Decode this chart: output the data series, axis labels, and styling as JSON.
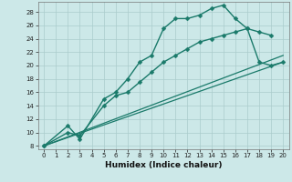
{
  "xlabel": "Humidex (Indice chaleur)",
  "background_color": "#cce8e8",
  "grid_color": "#aacccc",
  "line_color": "#1a7a6a",
  "xlim": [
    -0.5,
    20.5
  ],
  "ylim": [
    7.5,
    29.5
  ],
  "xticks": [
    0,
    1,
    2,
    3,
    4,
    5,
    6,
    7,
    8,
    9,
    10,
    11,
    12,
    13,
    14,
    15,
    16,
    17,
    18,
    19,
    20
  ],
  "yticks": [
    8,
    10,
    12,
    14,
    16,
    18,
    20,
    22,
    24,
    26,
    28
  ],
  "series": [
    {
      "x": [
        0,
        2,
        3,
        5,
        6,
        7,
        8,
        9,
        10,
        11,
        12,
        13,
        14,
        15,
        16,
        17,
        18,
        19
      ],
      "y": [
        8,
        11,
        9,
        15,
        16,
        18,
        20.5,
        21.5,
        25.5,
        27,
        27,
        27.5,
        28.5,
        29,
        27,
        25.5,
        25,
        24.5
      ],
      "marker": "D",
      "markersize": 2.5,
      "linewidth": 1.0
    },
    {
      "x": [
        0,
        2,
        3,
        5,
        6,
        7,
        8,
        9,
        10,
        11,
        12,
        13,
        14,
        15,
        16,
        17,
        18,
        19,
        20
      ],
      "y": [
        8,
        10,
        9.5,
        14,
        15.5,
        16,
        17.5,
        19,
        20.5,
        21.5,
        22.5,
        23.5,
        24,
        24.5,
        25,
        25.5,
        20.5,
        20,
        20.5
      ],
      "marker": "D",
      "markersize": 2.5,
      "linewidth": 1.0
    },
    {
      "x": [
        0,
        20
      ],
      "y": [
        8,
        20.5
      ],
      "marker": null,
      "markersize": 0,
      "linewidth": 0.9
    },
    {
      "x": [
        0,
        20
      ],
      "y": [
        8,
        21.5
      ],
      "marker": null,
      "markersize": 0,
      "linewidth": 0.9
    }
  ]
}
